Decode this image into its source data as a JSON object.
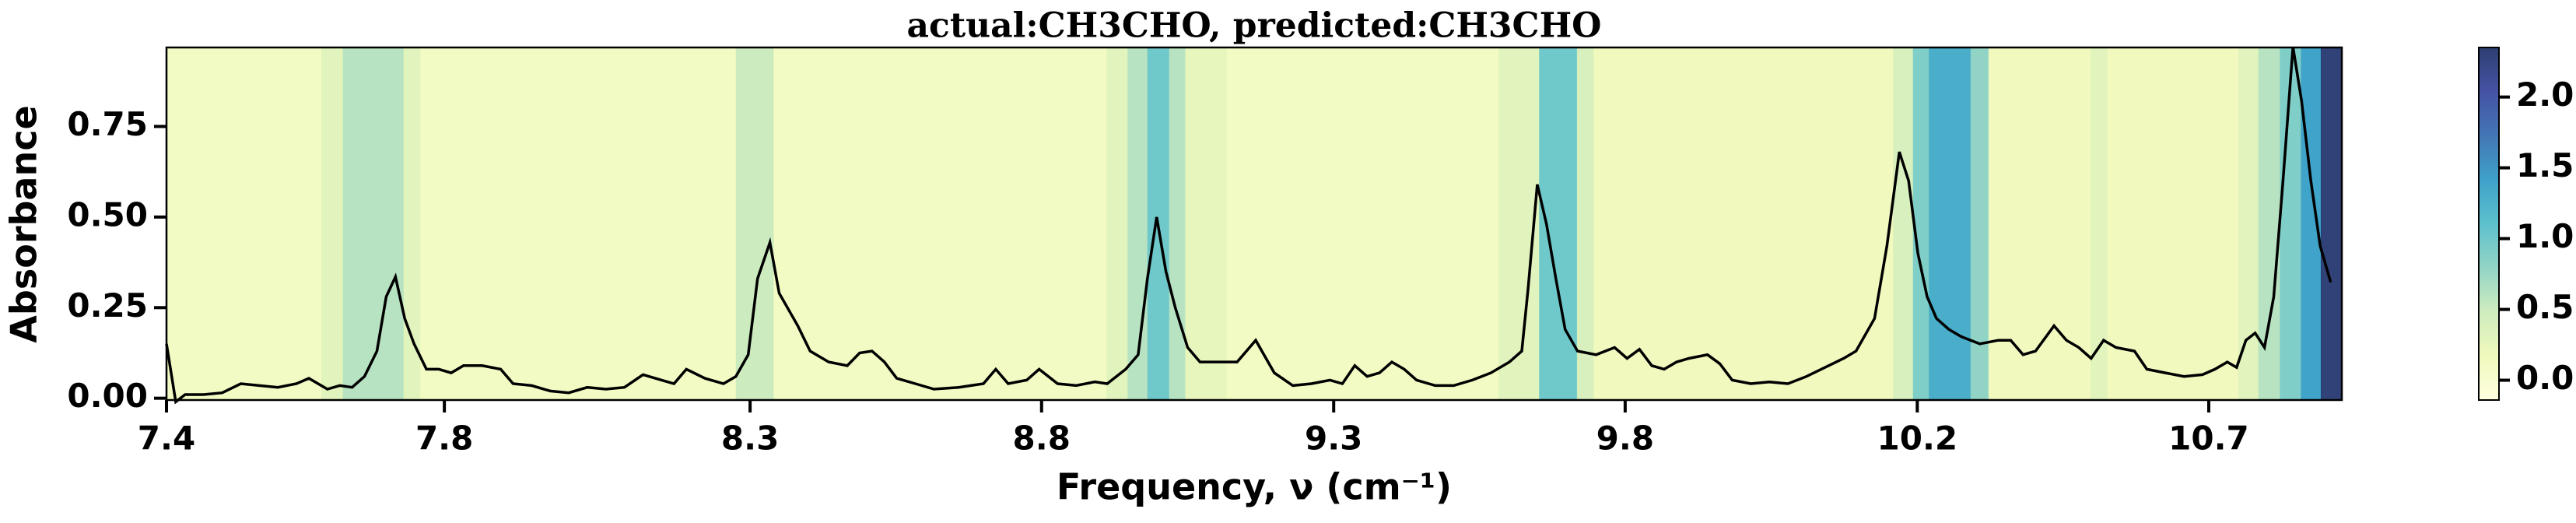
{
  "chart_data": {
    "type": "line",
    "title": "actual:CH3CHO, predicted:CH3CHO",
    "xlabel": "Frequency, ν (cm⁻¹)",
    "ylabel": "Absorbance",
    "color": "#000000",
    "x": [
      7.4,
      7.415,
      7.43,
      7.46,
      7.49,
      7.52,
      7.55,
      7.58,
      7.61,
      7.63,
      7.66,
      7.68,
      7.7,
      7.72,
      7.74,
      7.755,
      7.77,
      7.785,
      7.8,
      7.82,
      7.84,
      7.86,
      7.88,
      7.91,
      7.94,
      7.96,
      7.99,
      8.02,
      8.05,
      8.08,
      8.11,
      8.14,
      8.17,
      8.2,
      8.22,
      8.24,
      8.27,
      8.3,
      8.32,
      8.34,
      8.355,
      8.375,
      8.39,
      8.42,
      8.44,
      8.47,
      8.5,
      8.52,
      8.54,
      8.56,
      8.58,
      8.61,
      8.64,
      8.68,
      8.72,
      8.74,
      8.76,
      8.79,
      8.81,
      8.84,
      8.87,
      8.9,
      8.92,
      8.95,
      8.97,
      8.985,
      9.0,
      9.015,
      9.03,
      9.05,
      9.07,
      9.1,
      9.13,
      9.16,
      9.19,
      9.22,
      9.25,
      9.28,
      9.3,
      9.32,
      9.34,
      9.36,
      9.38,
      9.4,
      9.42,
      9.45,
      9.48,
      9.51,
      9.54,
      9.57,
      9.59,
      9.6,
      9.615,
      9.63,
      9.645,
      9.66,
      9.68,
      9.71,
      9.74,
      9.76,
      9.78,
      9.8,
      9.82,
      9.84,
      9.86,
      9.89,
      9.91,
      9.93,
      9.96,
      9.99,
      10.02,
      10.05,
      10.08,
      10.11,
      10.13,
      10.16,
      10.18,
      10.2,
      10.215,
      10.23,
      10.245,
      10.26,
      10.28,
      10.3,
      10.33,
      10.36,
      10.38,
      10.4,
      10.42,
      10.45,
      10.47,
      10.49,
      10.51,
      10.53,
      10.55,
      10.58,
      10.6,
      10.63,
      10.66,
      10.69,
      10.71,
      10.73,
      10.745,
      10.76,
      10.775,
      10.79,
      10.805,
      10.82,
      10.836,
      10.85,
      10.865,
      10.88,
      10.897
    ],
    "values": [
      0.15,
      -0.01,
      0.01,
      0.01,
      0.015,
      0.04,
      0.035,
      0.03,
      0.04,
      0.055,
      0.025,
      0.035,
      0.03,
      0.06,
      0.13,
      0.28,
      0.335,
      0.22,
      0.15,
      0.08,
      0.08,
      0.07,
      0.09,
      0.09,
      0.08,
      0.04,
      0.035,
      0.02,
      0.015,
      0.03,
      0.025,
      0.03,
      0.065,
      0.05,
      0.04,
      0.08,
      0.055,
      0.04,
      0.06,
      0.12,
      0.33,
      0.43,
      0.29,
      0.2,
      0.13,
      0.1,
      0.09,
      0.125,
      0.13,
      0.1,
      0.055,
      0.04,
      0.025,
      0.03,
      0.04,
      0.08,
      0.04,
      0.05,
      0.08,
      0.04,
      0.035,
      0.045,
      0.04,
      0.08,
      0.12,
      0.33,
      0.5,
      0.35,
      0.25,
      0.14,
      0.1,
      0.1,
      0.1,
      0.16,
      0.07,
      0.035,
      0.04,
      0.05,
      0.04,
      0.09,
      0.06,
      0.07,
      0.1,
      0.08,
      0.05,
      0.035,
      0.035,
      0.05,
      0.07,
      0.1,
      0.13,
      0.3,
      0.59,
      0.48,
      0.33,
      0.19,
      0.13,
      0.12,
      0.14,
      0.11,
      0.135,
      0.09,
      0.08,
      0.1,
      0.11,
      0.12,
      0.095,
      0.05,
      0.04,
      0.045,
      0.04,
      0.06,
      0.085,
      0.11,
      0.13,
      0.22,
      0.42,
      0.68,
      0.6,
      0.4,
      0.28,
      0.22,
      0.19,
      0.17,
      0.15,
      0.16,
      0.16,
      0.12,
      0.13,
      0.2,
      0.16,
      0.14,
      0.11,
      0.16,
      0.14,
      0.13,
      0.08,
      0.07,
      0.06,
      0.065,
      0.08,
      0.1,
      0.085,
      0.16,
      0.18,
      0.14,
      0.28,
      0.6,
      0.97,
      0.82,
      0.6,
      0.42,
      0.32
    ],
    "band_edges": [
      7.4,
      7.65,
      7.685,
      7.783,
      7.81,
      8.32,
      8.381,
      8.919,
      8.953,
      8.985,
      9.02,
      9.046,
      9.113,
      9.552,
      9.618,
      9.679,
      9.706,
      10.19,
      10.222,
      10.248,
      10.315,
      10.344,
      10.509,
      10.536,
      10.748,
      10.78,
      10.815,
      10.849,
      10.881,
      10.915
    ],
    "band_values": [
      0.1,
      0.3,
      0.6,
      0.3,
      0.1,
      0.5,
      0.1,
      0.3,
      0.6,
      1.0,
      0.6,
      0.25,
      0.1,
      0.3,
      1.0,
      0.4,
      0.15,
      0.4,
      0.9,
      1.3,
      0.8,
      0.15,
      0.3,
      0.15,
      0.3,
      0.6,
      0.9,
      1.4,
      2.3
    ],
    "colormap": [
      "#ffffd9",
      "#edf8b1",
      "#c7e9b4",
      "#7fcdbb",
      "#41b6c4",
      "#1d91c0",
      "#225ea8",
      "#253494",
      "#081d58"
    ],
    "clim": [
      -0.14,
      2.35
    ],
    "cticks": [
      {
        "value": 0.0,
        "label": "0.0"
      },
      {
        "value": 0.5,
        "label": "0.5"
      },
      {
        "value": 1.0,
        "label": "1.0"
      },
      {
        "value": 1.5,
        "label": "1.5"
      },
      {
        "value": 2.0,
        "label": "2.0"
      }
    ],
    "xlim": [
      7.4,
      10.915
    ],
    "xticks": [
      {
        "value": 7.4,
        "label": "7.4"
      },
      {
        "value": 7.849,
        "label": "7.8"
      },
      {
        "value": 8.343,
        "label": "8.3"
      },
      {
        "value": 8.814,
        "label": "8.8"
      },
      {
        "value": 9.286,
        "label": "9.3"
      },
      {
        "value": 9.757,
        "label": "9.8"
      },
      {
        "value": 10.229,
        "label": "10.2"
      },
      {
        "value": 10.7,
        "label": "10.7"
      }
    ],
    "ylim": [
      -0.005,
      0.968
    ],
    "yticks": [
      {
        "value": 0.0,
        "label": "0.00"
      },
      {
        "value": 0.25,
        "label": "0.25"
      },
      {
        "value": 0.5,
        "label": "0.50"
      },
      {
        "value": 0.75,
        "label": "0.75"
      }
    ]
  }
}
